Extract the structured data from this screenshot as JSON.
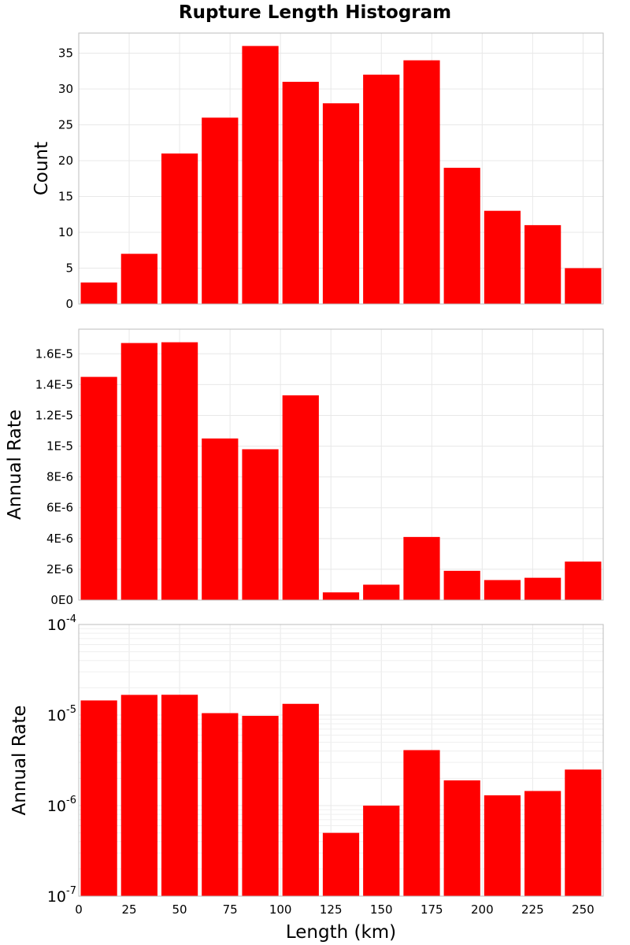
{
  "chart_data": [
    {
      "type": "bar",
      "title": "Rupture Length Histogram",
      "xlabel": "Length (km)",
      "ylabel": "Count",
      "bin_width": 20,
      "bin_centers": [
        10,
        30,
        50,
        70,
        90,
        110,
        130,
        150,
        170,
        190,
        210,
        230,
        250
      ],
      "values": [
        3,
        7,
        21,
        26,
        36,
        31,
        28,
        32,
        34,
        19,
        13,
        11,
        5
      ],
      "xlim": [
        0,
        260
      ],
      "ylim": [
        0,
        37.8
      ],
      "yticks": [
        0,
        5,
        10,
        15,
        20,
        25,
        30,
        35
      ],
      "ytick_labels": [
        "0",
        "5",
        "10",
        "15",
        "20",
        "25",
        "30",
        "35"
      ],
      "color": "#ff0000",
      "grid": true
    },
    {
      "type": "bar",
      "xlabel": "Length (km)",
      "ylabel": "Annual Rate",
      "bin_width": 20,
      "bin_centers": [
        10,
        30,
        50,
        70,
        90,
        110,
        130,
        150,
        170,
        190,
        210,
        230,
        250
      ],
      "values": [
        1.45e-05,
        1.67e-05,
        1.675e-05,
        1.05e-05,
        9.8e-06,
        1.33e-05,
        5e-07,
        1e-06,
        4.1e-06,
        1.9e-06,
        1.3e-06,
        1.45e-06,
        2.5e-06
      ],
      "xlim": [
        0,
        260
      ],
      "ylim": [
        0,
        1.76e-05
      ],
      "yticks": [
        0,
        2e-06,
        4e-06,
        6e-06,
        8e-06,
        1e-05,
        1.2e-05,
        1.4e-05,
        1.6e-05
      ],
      "ytick_labels": [
        "0E0",
        "2E-6",
        "4E-6",
        "6E-6",
        "8E-6",
        "1E-5",
        "1.2E-5",
        "1.4E-5",
        "1.6E-5"
      ],
      "color": "#ff0000",
      "grid": true
    },
    {
      "type": "bar",
      "xlabel": "Length (km)",
      "ylabel": "Annual Rate",
      "yscale": "log",
      "bin_width": 20,
      "bin_centers": [
        10,
        30,
        50,
        70,
        90,
        110,
        130,
        150,
        170,
        190,
        210,
        230,
        250
      ],
      "values": [
        1.45e-05,
        1.67e-05,
        1.675e-05,
        1.05e-05,
        9.8e-06,
        1.33e-05,
        5e-07,
        1e-06,
        4.1e-06,
        1.9e-06,
        1.3e-06,
        1.45e-06,
        2.5e-06
      ],
      "xlim": [
        0,
        260
      ],
      "ylim": [
        1e-07,
        0.0001
      ],
      "ytick_labels": [
        {
          "base": "10",
          "exp": "-7"
        },
        {
          "base": "10",
          "exp": "-6"
        },
        {
          "base": "10",
          "exp": "-5"
        },
        {
          "base": "10",
          "exp": "-4"
        }
      ],
      "xticks": [
        0,
        25,
        50,
        75,
        100,
        125,
        150,
        175,
        200,
        225,
        250
      ],
      "xtick_labels": [
        "0",
        "25",
        "50",
        "75",
        "100",
        "125",
        "150",
        "175",
        "200",
        "225",
        "250"
      ],
      "color": "#ff0000",
      "grid": true
    }
  ]
}
